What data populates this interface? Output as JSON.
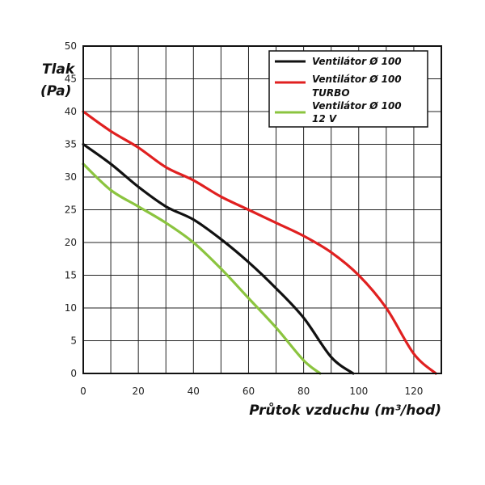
{
  "chart_data": {
    "type": "line",
    "ylabel_lines": [
      "Tlak",
      "(Pa)"
    ],
    "xlabel": "Průtok vzduchu (m³/hod)",
    "xlim": [
      0,
      130
    ],
    "ylim": [
      0,
      50
    ],
    "x_ticks": [
      0,
      20,
      40,
      60,
      80,
      100,
      120
    ],
    "y_ticks": [
      0,
      5,
      10,
      15,
      20,
      25,
      30,
      35,
      40,
      45,
      50
    ],
    "x_grid_step": 10,
    "y_grid_step": 5,
    "grid": true,
    "legend_position": "top-right",
    "series": [
      {
        "name_lines": [
          "Ventilátor Ø 100"
        ],
        "color": "#111111",
        "points": [
          [
            0,
            35
          ],
          [
            10,
            32
          ],
          [
            20,
            28.5
          ],
          [
            30,
            25.5
          ],
          [
            40,
            23.5
          ],
          [
            50,
            20.5
          ],
          [
            60,
            17
          ],
          [
            70,
            13
          ],
          [
            80,
            8.5
          ],
          [
            90,
            2.5
          ],
          [
            98,
            0
          ]
        ]
      },
      {
        "name_lines": [
          "Ventilátor Ø 100",
          "TURBO"
        ],
        "color": "#e02020",
        "points": [
          [
            0,
            40
          ],
          [
            10,
            37
          ],
          [
            20,
            34.5
          ],
          [
            30,
            31.5
          ],
          [
            40,
            29.5
          ],
          [
            50,
            27
          ],
          [
            60,
            25
          ],
          [
            70,
            23
          ],
          [
            80,
            21
          ],
          [
            90,
            18.5
          ],
          [
            100,
            15
          ],
          [
            110,
            10
          ],
          [
            120,
            3
          ],
          [
            128,
            0
          ]
        ]
      },
      {
        "name_lines": [
          "Ventilátor Ø 100",
          "12 V"
        ],
        "color": "#8bc43f",
        "points": [
          [
            0,
            32
          ],
          [
            10,
            28
          ],
          [
            20,
            25.5
          ],
          [
            30,
            23
          ],
          [
            40,
            20
          ],
          [
            50,
            16
          ],
          [
            60,
            11.5
          ],
          [
            70,
            7
          ],
          [
            80,
            2
          ],
          [
            86,
            0
          ]
        ]
      }
    ]
  }
}
